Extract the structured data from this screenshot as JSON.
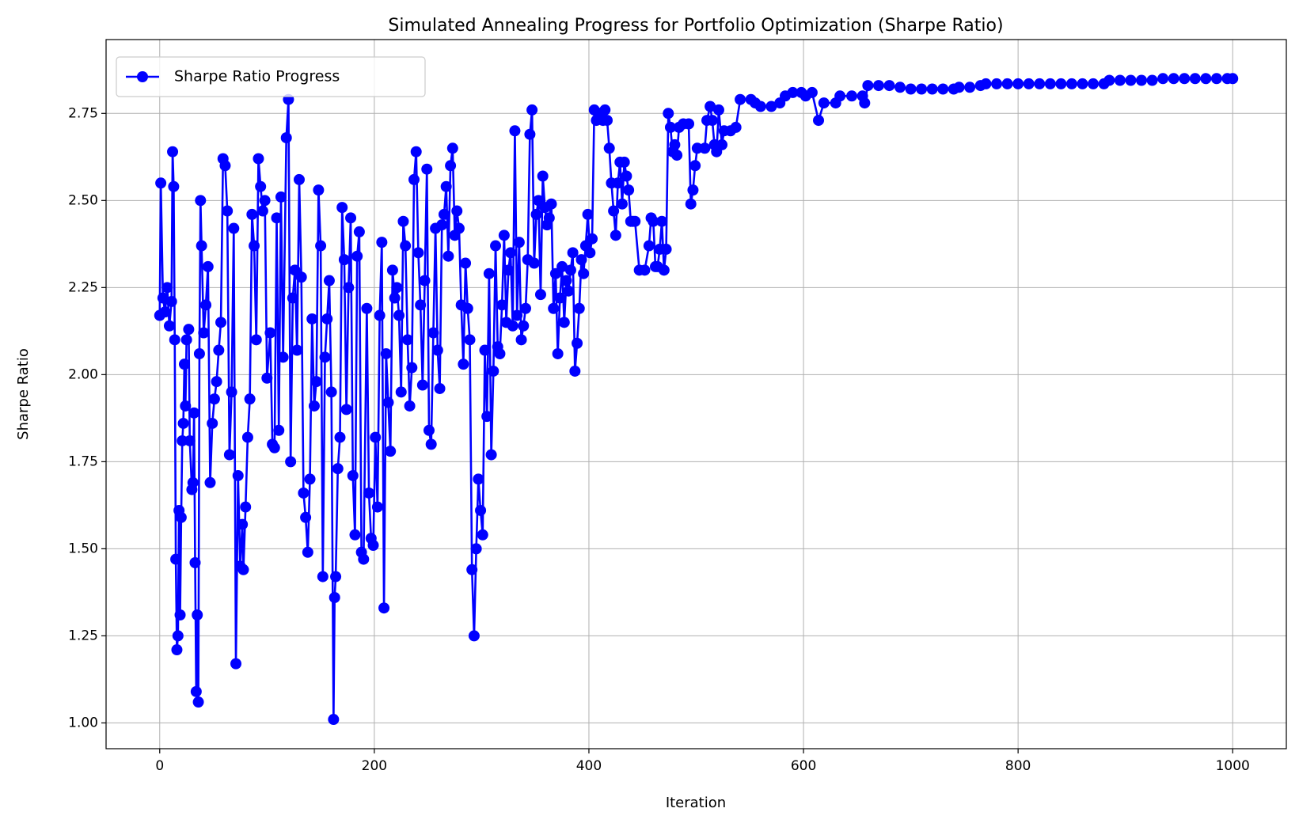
{
  "chart_data": {
    "type": "line",
    "title": "Simulated Annealing Progress for Portfolio Optimization (Sharpe Ratio)",
    "x_label": "Iteration",
    "y_label": "Sharpe Ratio",
    "legend": "upper left",
    "grid": true,
    "xlim": [
      -50,
      1050
    ],
    "xticks": [
      0,
      200,
      400,
      600,
      800,
      1000
    ],
    "ylim": [
      0.926,
      2.962
    ],
    "yticks": [
      {
        "value": 1,
        "label": "1.00"
      },
      {
        "value": 1.25,
        "label": "1.25"
      },
      {
        "value": 1.5,
        "label": "1.50"
      },
      {
        "value": 1.75,
        "label": "1.75"
      },
      {
        "value": 2,
        "label": "2.00"
      },
      {
        "value": 2.25,
        "label": "2.25"
      },
      {
        "value": 2.5,
        "label": "2.50"
      },
      {
        "value": 2.75,
        "label": "2.75"
      }
    ],
    "x": [
      0,
      1,
      3,
      5,
      7,
      9,
      11,
      12,
      13,
      14,
      15,
      16,
      17,
      18,
      19,
      20,
      21,
      22,
      23,
      24,
      25,
      27,
      28,
      30,
      31,
      32,
      33,
      34,
      35,
      36,
      37,
      38,
      39,
      41,
      43,
      45,
      47,
      49,
      51,
      53,
      55,
      57,
      59,
      61,
      63,
      65,
      67,
      69,
      71,
      73,
      75,
      77,
      78,
      80,
      82,
      84,
      86,
      88,
      90,
      92,
      94,
      96,
      98,
      100,
      103,
      105,
      107,
      109,
      111,
      113,
      115,
      118,
      120,
      122,
      124,
      126,
      128,
      130,
      132,
      134,
      136,
      138,
      140,
      142,
      144,
      146,
      148,
      150,
      152,
      154,
      156,
      158,
      160,
      162,
      163,
      164,
      166,
      168,
      170,
      172,
      174,
      176,
      178,
      180,
      182,
      184,
      186,
      188,
      190,
      193,
      195,
      197,
      199,
      201,
      203,
      205,
      207,
      209,
      211,
      213,
      215,
      217,
      219,
      221,
      223,
      225,
      227,
      229,
      231,
      233,
      235,
      237,
      239,
      241,
      243,
      245,
      247,
      249,
      251,
      253,
      255,
      257,
      259,
      261,
      263,
      265,
      267,
      269,
      271,
      273,
      275,
      277,
      279,
      281,
      283,
      285,
      287,
      289,
      291,
      293,
      295,
      297,
      299,
      301,
      303,
      305,
      307,
      309,
      311,
      313,
      315,
      317,
      319,
      321,
      323,
      325,
      327,
      329,
      331,
      333,
      335,
      337,
      339,
      341,
      343,
      345,
      347,
      349,
      351,
      353,
      355,
      357,
      359,
      361,
      363,
      365,
      367,
      369,
      371,
      373,
      375,
      377,
      379,
      381,
      383,
      385,
      387,
      389,
      391,
      393,
      395,
      397,
      399,
      401,
      403,
      405,
      407,
      409,
      411,
      413,
      415,
      417,
      419,
      421,
      423,
      425,
      427,
      429,
      431,
      433,
      435,
      437,
      439,
      441,
      443,
      447,
      452,
      456,
      458,
      460,
      462,
      464,
      466,
      468,
      470,
      472,
      474,
      476,
      478,
      480,
      482,
      484,
      488,
      493,
      495,
      497,
      499,
      501,
      508,
      510,
      513,
      515,
      517,
      519,
      521,
      524,
      526,
      532,
      537,
      541,
      551,
      555,
      560,
      570,
      578,
      583,
      590,
      598,
      602,
      608,
      614,
      619,
      630,
      634,
      645,
      655,
      657,
      660,
      670,
      680,
      690,
      700,
      710,
      720,
      730,
      740,
      745,
      755,
      765,
      770,
      780,
      790,
      800,
      810,
      820,
      830,
      840,
      850,
      860,
      870,
      880,
      885,
      895,
      905,
      915,
      925,
      935,
      945,
      955,
      965,
      975,
      985,
      995,
      1000
    ],
    "series": [
      {
        "name": "Sharpe Ratio Progress",
        "color": "#0000ff",
        "values": [
          2.17,
          2.55,
          2.22,
          2.18,
          2.25,
          2.14,
          2.21,
          2.64,
          2.54,
          2.1,
          1.47,
          1.21,
          1.25,
          1.61,
          1.31,
          1.59,
          1.81,
          1.86,
          2.03,
          1.91,
          2.1,
          2.13,
          1.81,
          1.67,
          1.69,
          1.89,
          1.46,
          1.09,
          1.31,
          1.06,
          2.06,
          2.5,
          2.37,
          2.12,
          2.2,
          2.31,
          1.69,
          1.86,
          1.93,
          1.98,
          2.07,
          2.15,
          2.62,
          2.6,
          2.47,
          1.77,
          1.95,
          2.42,
          1.17,
          1.71,
          1.45,
          1.57,
          1.44,
          1.62,
          1.82,
          1.93,
          2.46,
          2.37,
          2.1,
          2.62,
          2.54,
          2.47,
          2.5,
          1.99,
          2.12,
          1.8,
          1.79,
          2.45,
          1.84,
          2.51,
          2.05,
          2.68,
          2.79,
          1.75,
          2.22,
          2.3,
          2.07,
          2.56,
          2.28,
          1.66,
          1.59,
          1.49,
          1.7,
          2.16,
          1.91,
          1.98,
          2.53,
          2.37,
          1.42,
          2.05,
          2.16,
          2.27,
          1.95,
          1.01,
          1.36,
          1.42,
          1.73,
          1.82,
          2.48,
          2.33,
          1.9,
          2.25,
          2.45,
          1.71,
          1.54,
          2.34,
          2.41,
          1.49,
          1.47,
          2.19,
          1.66,
          1.53,
          1.51,
          1.82,
          1.62,
          2.17,
          2.38,
          1.33,
          2.06,
          1.92,
          1.78,
          2.3,
          2.22,
          2.25,
          2.17,
          1.95,
          2.44,
          2.37,
          2.1,
          1.91,
          2.02,
          2.56,
          2.64,
          2.35,
          2.2,
          1.97,
          2.27,
          2.59,
          1.84,
          1.8,
          2.12,
          2.42,
          2.07,
          1.96,
          2.43,
          2.46,
          2.54,
          2.34,
          2.6,
          2.65,
          2.4,
          2.47,
          2.42,
          2.2,
          2.03,
          2.32,
          2.19,
          2.1,
          1.44,
          1.25,
          1.5,
          1.7,
          1.61,
          1.54,
          2.07,
          1.88,
          2.29,
          1.77,
          2.01,
          2.37,
          2.08,
          2.06,
          2.2,
          2.4,
          2.15,
          2.3,
          2.35,
          2.14,
          2.7,
          2.17,
          2.38,
          2.1,
          2.14,
          2.19,
          2.33,
          2.69,
          2.76,
          2.32,
          2.46,
          2.5,
          2.23,
          2.57,
          2.48,
          2.43,
          2.45,
          2.49,
          2.19,
          2.29,
          2.06,
          2.22,
          2.31,
          2.15,
          2.27,
          2.24,
          2.3,
          2.35,
          2.01,
          2.09,
          2.19,
          2.33,
          2.29,
          2.37,
          2.46,
          2.35,
          2.39,
          2.76,
          2.73,
          2.75,
          2.75,
          2.73,
          2.76,
          2.73,
          2.65,
          2.55,
          2.47,
          2.4,
          2.55,
          2.61,
          2.49,
          2.61,
          2.57,
          2.53,
          2.44,
          2.44,
          2.44,
          2.3,
          2.3,
          2.37,
          2.45,
          2.44,
          2.31,
          2.31,
          2.36,
          2.44,
          2.3,
          2.36,
          2.75,
          2.71,
          2.64,
          2.66,
          2.63,
          2.71,
          2.72,
          2.72,
          2.49,
          2.53,
          2.6,
          2.65,
          2.65,
          2.73,
          2.77,
          2.73,
          2.66,
          2.64,
          2.76,
          2.66,
          2.7,
          2.7,
          2.71,
          2.79,
          2.79,
          2.78,
          2.77,
          2.77,
          2.78,
          2.8,
          2.81,
          2.81,
          2.8,
          2.81,
          2.73,
          2.78,
          2.78,
          2.8,
          2.8,
          2.8,
          2.78,
          2.83,
          2.83,
          2.83,
          2.825,
          2.82,
          2.82,
          2.82,
          2.82,
          2.82,
          2.825,
          2.825,
          2.83,
          2.835,
          2.835,
          2.835,
          2.835,
          2.835,
          2.835,
          2.835,
          2.835,
          2.835,
          2.835,
          2.835,
          2.835,
          2.845,
          2.845,
          2.845,
          2.845,
          2.845,
          2.85,
          2.85,
          2.85,
          2.85,
          2.85,
          2.85,
          2.85,
          2.85
        ]
      }
    ]
  }
}
